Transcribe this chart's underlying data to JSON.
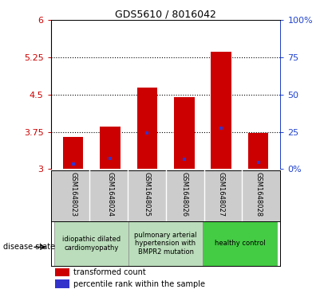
{
  "title": "GDS5610 / 8016042",
  "samples": [
    "GSM1648023",
    "GSM1648024",
    "GSM1648025",
    "GSM1648026",
    "GSM1648027",
    "GSM1648028"
  ],
  "bar_heights": [
    3.65,
    3.85,
    4.65,
    4.45,
    5.37,
    3.72
  ],
  "blue_marker_y": [
    3.1,
    3.22,
    3.72,
    3.2,
    3.83,
    3.13
  ],
  "ylim": [
    3.0,
    6.0
  ],
  "yticks_left": [
    3,
    3.75,
    4.5,
    5.25,
    6
  ],
  "ytick_labels_left": [
    "3",
    "3.75",
    "4.5",
    "5.25",
    "6"
  ],
  "yticks_right_pct": [
    0,
    25,
    50,
    75,
    100
  ],
  "right_ytick_labels": [
    "0%",
    "25",
    "50",
    "75",
    "100%"
  ],
  "hlines": [
    3.75,
    4.5,
    5.25
  ],
  "bar_color": "#cc0000",
  "blue_color": "#3333cc",
  "bar_width": 0.55,
  "group_labels": [
    "idiopathic dilated\ncardiomyopathy",
    "pulmonary arterial\nhypertension with\nBMPR2 mutation",
    "healthy control"
  ],
  "group_starts": [
    0,
    2,
    4
  ],
  "group_ends": [
    2,
    4,
    6
  ],
  "group_bg": [
    "#bbddbb",
    "#bbddbb",
    "#44cc44"
  ],
  "legend_red_label": "transformed count",
  "legend_blue_label": "percentile rank within the sample",
  "disease_state_label": "disease state",
  "left_tick_color": "#cc0000",
  "right_tick_color": "#2244cc",
  "sample_box_bg": "#cccccc",
  "plot_bg": "#ffffff"
}
